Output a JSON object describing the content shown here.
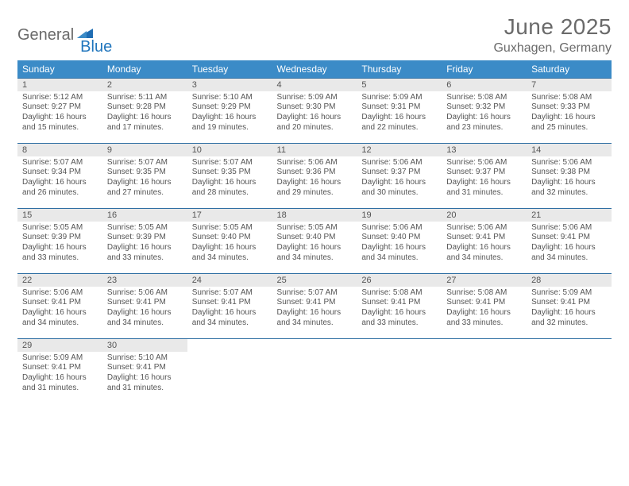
{
  "brand": {
    "part1": "General",
    "part2": "Blue"
  },
  "title": "June 2025",
  "location": "Guxhagen, Germany",
  "colors": {
    "header_bg": "#3b8bc7",
    "header_text": "#ffffff",
    "daynum_bg": "#e9e9e9",
    "row_border": "#2f6fa3",
    "body_text": "#555555",
    "title_text": "#6a6a6a",
    "brand_blue": "#2176bd"
  },
  "typography": {
    "title_fontsize": 28,
    "location_fontsize": 16,
    "weekday_fontsize": 12,
    "daynum_fontsize": 11,
    "cell_fontsize": 10
  },
  "layout": {
    "columns": 7,
    "rows": 5
  },
  "weekdays": [
    "Sunday",
    "Monday",
    "Tuesday",
    "Wednesday",
    "Thursday",
    "Friday",
    "Saturday"
  ],
  "days": [
    {
      "n": "1",
      "sunrise": "5:12 AM",
      "sunset": "9:27 PM",
      "daylight": "16 hours and 15 minutes."
    },
    {
      "n": "2",
      "sunrise": "5:11 AM",
      "sunset": "9:28 PM",
      "daylight": "16 hours and 17 minutes."
    },
    {
      "n": "3",
      "sunrise": "5:10 AM",
      "sunset": "9:29 PM",
      "daylight": "16 hours and 19 minutes."
    },
    {
      "n": "4",
      "sunrise": "5:09 AM",
      "sunset": "9:30 PM",
      "daylight": "16 hours and 20 minutes."
    },
    {
      "n": "5",
      "sunrise": "5:09 AM",
      "sunset": "9:31 PM",
      "daylight": "16 hours and 22 minutes."
    },
    {
      "n": "6",
      "sunrise": "5:08 AM",
      "sunset": "9:32 PM",
      "daylight": "16 hours and 23 minutes."
    },
    {
      "n": "7",
      "sunrise": "5:08 AM",
      "sunset": "9:33 PM",
      "daylight": "16 hours and 25 minutes."
    },
    {
      "n": "8",
      "sunrise": "5:07 AM",
      "sunset": "9:34 PM",
      "daylight": "16 hours and 26 minutes."
    },
    {
      "n": "9",
      "sunrise": "5:07 AM",
      "sunset": "9:35 PM",
      "daylight": "16 hours and 27 minutes."
    },
    {
      "n": "10",
      "sunrise": "5:07 AM",
      "sunset": "9:35 PM",
      "daylight": "16 hours and 28 minutes."
    },
    {
      "n": "11",
      "sunrise": "5:06 AM",
      "sunset": "9:36 PM",
      "daylight": "16 hours and 29 minutes."
    },
    {
      "n": "12",
      "sunrise": "5:06 AM",
      "sunset": "9:37 PM",
      "daylight": "16 hours and 30 minutes."
    },
    {
      "n": "13",
      "sunrise": "5:06 AM",
      "sunset": "9:37 PM",
      "daylight": "16 hours and 31 minutes."
    },
    {
      "n": "14",
      "sunrise": "5:06 AM",
      "sunset": "9:38 PM",
      "daylight": "16 hours and 32 minutes."
    },
    {
      "n": "15",
      "sunrise": "5:05 AM",
      "sunset": "9:39 PM",
      "daylight": "16 hours and 33 minutes."
    },
    {
      "n": "16",
      "sunrise": "5:05 AM",
      "sunset": "9:39 PM",
      "daylight": "16 hours and 33 minutes."
    },
    {
      "n": "17",
      "sunrise": "5:05 AM",
      "sunset": "9:40 PM",
      "daylight": "16 hours and 34 minutes."
    },
    {
      "n": "18",
      "sunrise": "5:05 AM",
      "sunset": "9:40 PM",
      "daylight": "16 hours and 34 minutes."
    },
    {
      "n": "19",
      "sunrise": "5:06 AM",
      "sunset": "9:40 PM",
      "daylight": "16 hours and 34 minutes."
    },
    {
      "n": "20",
      "sunrise": "5:06 AM",
      "sunset": "9:41 PM",
      "daylight": "16 hours and 34 minutes."
    },
    {
      "n": "21",
      "sunrise": "5:06 AM",
      "sunset": "9:41 PM",
      "daylight": "16 hours and 34 minutes."
    },
    {
      "n": "22",
      "sunrise": "5:06 AM",
      "sunset": "9:41 PM",
      "daylight": "16 hours and 34 minutes."
    },
    {
      "n": "23",
      "sunrise": "5:06 AM",
      "sunset": "9:41 PM",
      "daylight": "16 hours and 34 minutes."
    },
    {
      "n": "24",
      "sunrise": "5:07 AM",
      "sunset": "9:41 PM",
      "daylight": "16 hours and 34 minutes."
    },
    {
      "n": "25",
      "sunrise": "5:07 AM",
      "sunset": "9:41 PM",
      "daylight": "16 hours and 34 minutes."
    },
    {
      "n": "26",
      "sunrise": "5:08 AM",
      "sunset": "9:41 PM",
      "daylight": "16 hours and 33 minutes."
    },
    {
      "n": "27",
      "sunrise": "5:08 AM",
      "sunset": "9:41 PM",
      "daylight": "16 hours and 33 minutes."
    },
    {
      "n": "28",
      "sunrise": "5:09 AM",
      "sunset": "9:41 PM",
      "daylight": "16 hours and 32 minutes."
    },
    {
      "n": "29",
      "sunrise": "5:09 AM",
      "sunset": "9:41 PM",
      "daylight": "16 hours and 31 minutes."
    },
    {
      "n": "30",
      "sunrise": "5:10 AM",
      "sunset": "9:41 PM",
      "daylight": "16 hours and 31 minutes."
    }
  ],
  "labels": {
    "sunrise": "Sunrise:",
    "sunset": "Sunset:",
    "daylight": "Daylight:"
  }
}
